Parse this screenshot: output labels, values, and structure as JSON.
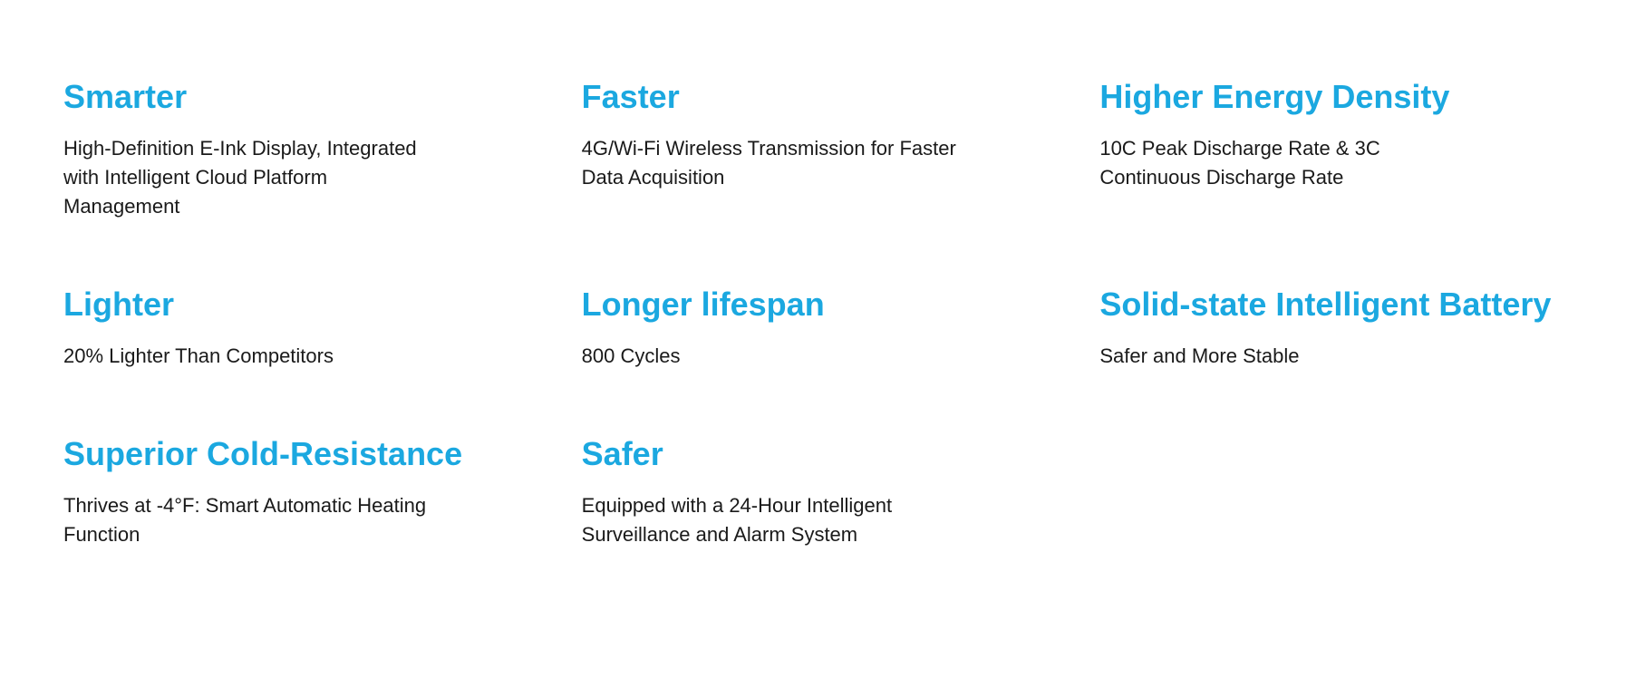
{
  "layout": {
    "type": "infographic",
    "columns": 3,
    "rows": 3,
    "background_color": "#ffffff",
    "title_color": "#1ba8e0",
    "description_color": "#1a1a1a",
    "title_fontsize": 36,
    "title_fontweight": 700,
    "description_fontsize": 22,
    "description_fontweight": 400
  },
  "features": [
    {
      "title": "Smarter",
      "description": "High-Definition E-Ink Display, Integrated with Intelligent Cloud Platform Management"
    },
    {
      "title": "Faster",
      "description": "4G/Wi-Fi Wireless Transmission for Faster Data Acquisition"
    },
    {
      "title": "Higher Energy Density",
      "description": "10C Peak Discharge Rate & 3C Continuous Discharge Rate"
    },
    {
      "title": "Lighter",
      "description": "20% Lighter Than Competitors"
    },
    {
      "title": "Longer lifespan",
      "description": "800 Cycles"
    },
    {
      "title": "Solid-state Intelligent Battery",
      "description": "Safer and More Stable"
    },
    {
      "title": "Superior Cold-Resistance",
      "description": "Thrives at -4°F: Smart Automatic Heating Function"
    },
    {
      "title": "Safer",
      "description": "Equipped with a 24-Hour Intelligent Surveillance and Alarm System"
    }
  ]
}
